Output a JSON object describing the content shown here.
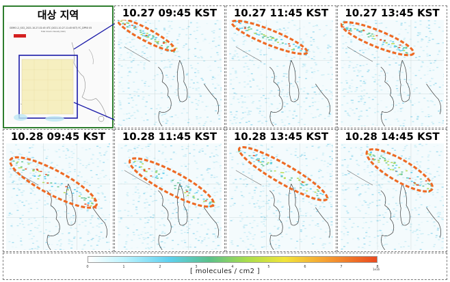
{
  "panels": [
    {
      "label": "대상 지역",
      "kind": "target"
    },
    {
      "label": "10.27  09:45  KST",
      "kind": "map"
    },
    {
      "label": "10.27  11:45  KST",
      "kind": "map"
    },
    {
      "label": "10.27  13:45  KST",
      "kind": "map"
    },
    {
      "label": "10.28  09:45  KST",
      "kind": "map"
    },
    {
      "label": "10.28  11:45  KST",
      "kind": "map"
    },
    {
      "label": "10.28  13:45  KST",
      "kind": "map"
    },
    {
      "label": "10.28  14:45  KST",
      "kind": "map"
    }
  ],
  "target_map": {
    "header_line1": "GEMS L2_SO2_2021-10-27-02:45 UTC (2021-10-27-11:45 KST)  FC_DPRO 05",
    "header_line2": "Total Column Density (SO2)"
  },
  "colorbar": {
    "unit_label": "[ molecules / cm2 ]",
    "exponent_label": "1e16",
    "ticks": [
      "0",
      "1",
      "2",
      "3",
      "4",
      "5",
      "6",
      "7",
      "8"
    ],
    "range": [
      0,
      8
    ],
    "colors": [
      "#ffffff",
      "#bff4ff",
      "#5fd0ef",
      "#5bc08a",
      "#a9dd4c",
      "#f1e43a",
      "#f5a133",
      "#ea4a1f"
    ]
  },
  "colors": {
    "highlight_ellipse": "#ee6a24",
    "target_border": "#2d7d2d",
    "selection_box": "#1a1aa8",
    "coastline": "#333333",
    "plume_fill": "#bfe9f4"
  },
  "icons": {
    "plume_marker": "dashed-ellipse-icon"
  }
}
